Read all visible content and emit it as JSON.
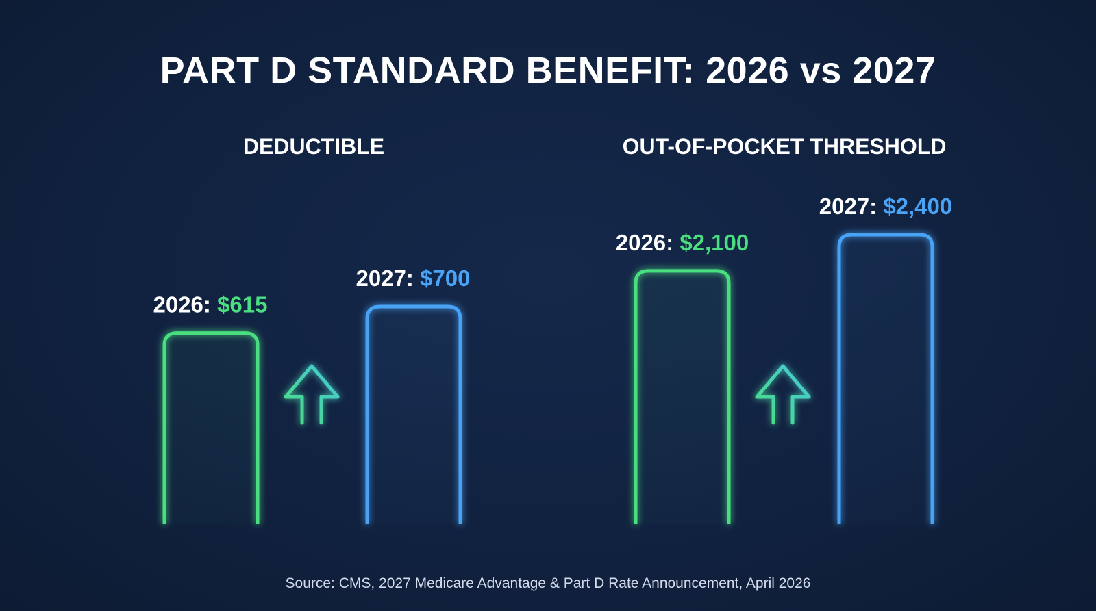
{
  "title": "PART D STANDARD BENEFIT: 2026 vs 2027",
  "source": "Source: CMS, 2027 Medicare Advantage & Part D Rate Announcement, April 2026",
  "colors": {
    "background": "#112240",
    "year_2026": "#4ade80",
    "year_2027": "#4aa3f5",
    "label_text": "#ffffff"
  },
  "chart_data": [
    {
      "type": "bar",
      "title": "DEDUCTIBLE",
      "categories": [
        "2026",
        "2027"
      ],
      "values": [
        615,
        700
      ],
      "value_labels": [
        "$615",
        "$700"
      ],
      "annotation_icon": "up-arrow-icon",
      "grid": false
    },
    {
      "type": "bar",
      "title": "OUT-OF-POCKET THRESHOLD",
      "categories": [
        "2026",
        "2027"
      ],
      "values": [
        2100,
        2400
      ],
      "value_labels": [
        "$2,100",
        "$2,400"
      ],
      "annotation_icon": "up-arrow-icon",
      "grid": false
    }
  ]
}
